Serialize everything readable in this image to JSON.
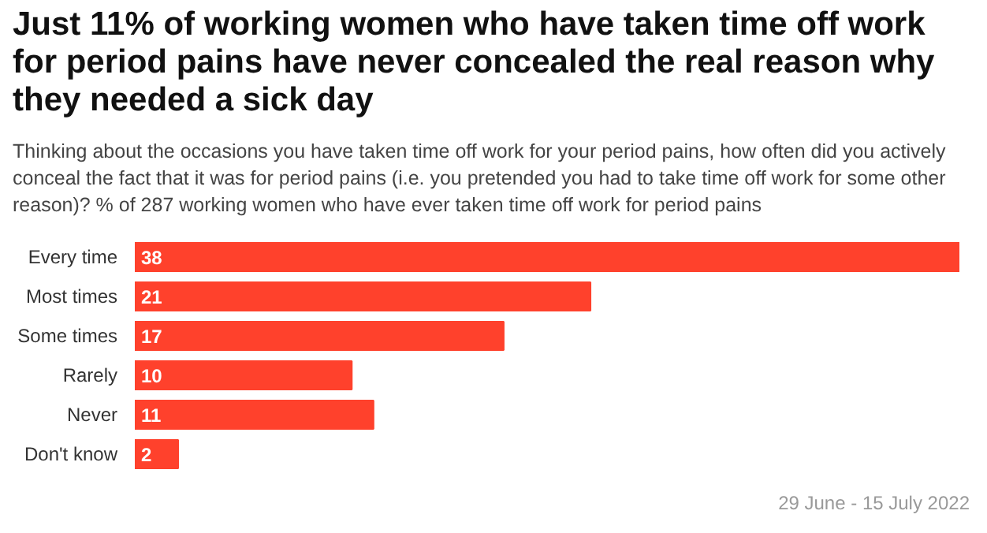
{
  "chart_data": {
    "type": "bar",
    "orientation": "horizontal",
    "title": "Just 11% of working women who have taken time off work for period pains have never concealed the real reason why they needed a sick day",
    "subtitle": "Thinking about the occasions you have taken time off work for your period pains, how often did you actively conceal the fact that it was for period pains (i.e. you pretended you had to take time off work for some other reason)? % of 287 working women who have ever taken time off work for period pains",
    "categories": [
      "Every time",
      "Most times",
      "Some times",
      "Rarely",
      "Never",
      "Don't know"
    ],
    "values": [
      38,
      21,
      17,
      10,
      11,
      2
    ],
    "color": "#ff412c",
    "data_labels": true,
    "grid": false,
    "annotations": [
      "29 June - 15 July 2022"
    ]
  }
}
